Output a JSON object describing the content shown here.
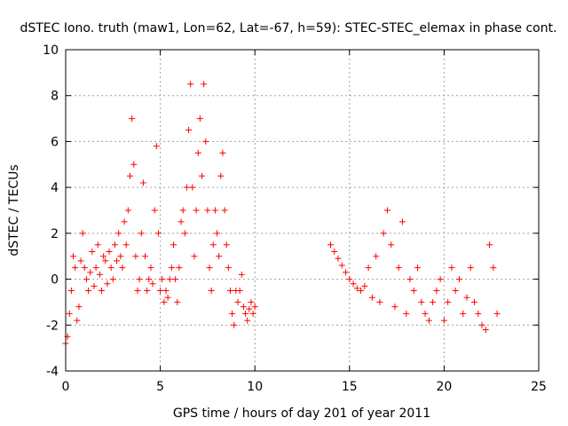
{
  "chart_data": {
    "type": "scatter",
    "title": "dSTEC Iono. truth (maw1, Lon=62, Lat=-67, h=59): STEC-STEC_elemax in phase cont.",
    "xlabel": "GPS time / hours of day 201 of year 2011",
    "ylabel": "dSTEC  / TECUs",
    "xlim": [
      0,
      25
    ],
    "ylim": [
      -4,
      10
    ],
    "xticks": [
      0,
      5,
      10,
      15,
      20,
      25
    ],
    "yticks": [
      -4,
      -2,
      0,
      2,
      4,
      6,
      8,
      10
    ],
    "grid": true,
    "legend": "none",
    "marker": "+",
    "color": "#ff0000",
    "series": [
      {
        "x": [
          0.0,
          0.1,
          0.2,
          0.3,
          0.4,
          0.5,
          0.6,
          0.7,
          0.8,
          0.9,
          1.0,
          1.1,
          1.2,
          1.3,
          1.4,
          1.5,
          1.6,
          1.7,
          1.8,
          1.9,
          2.0,
          2.1,
          2.2,
          2.3,
          2.4,
          2.5,
          2.6,
          2.7,
          2.8,
          2.9,
          3.0,
          3.1,
          3.2,
          3.3,
          3.4,
          3.5,
          3.6,
          3.7,
          3.8,
          3.9,
          4.0,
          4.1,
          4.2,
          4.3,
          4.4,
          4.5,
          4.6,
          4.7,
          4.8,
          4.9,
          5.0,
          5.1,
          5.2,
          5.3,
          5.4,
          5.5,
          5.6,
          5.7,
          5.8,
          5.9,
          6.0,
          6.1,
          6.2,
          6.3,
          6.4,
          6.5,
          6.6,
          6.7,
          6.8,
          6.9,
          7.0,
          7.1,
          7.2,
          7.3,
          7.4,
          7.5,
          7.6,
          7.7,
          7.8,
          7.9,
          8.0,
          8.1,
          8.2,
          8.3,
          8.4,
          8.5,
          8.6,
          8.7,
          8.8,
          8.9,
          9.0,
          9.1,
          9.2,
          9.3,
          9.4,
          9.5,
          9.6,
          9.7,
          9.8,
          9.9,
          10.0
        ],
        "y": [
          -2.8,
          -2.5,
          -1.5,
          -0.5,
          1.0,
          0.5,
          -1.8,
          -1.2,
          0.8,
          2.0,
          0.5,
          0.0,
          -0.5,
          0.3,
          1.2,
          -0.3,
          0.5,
          1.5,
          0.2,
          -0.5,
          1.0,
          0.8,
          -0.2,
          1.2,
          0.5,
          0.0,
          1.5,
          0.8,
          2.0,
          1.0,
          0.5,
          2.5,
          1.5,
          3.0,
          4.5,
          7.0,
          5.0,
          1.0,
          -0.5,
          0.0,
          2.0,
          4.2,
          1.0,
          -0.5,
          0.0,
          0.5,
          -0.2,
          3.0,
          5.8,
          2.0,
          -0.5,
          0.0,
          -1.0,
          -0.5,
          -0.8,
          0.0,
          0.5,
          1.5,
          0.0,
          -1.0,
          0.5,
          2.5,
          3.0,
          2.0,
          4.0,
          6.5,
          8.5,
          4.0,
          1.0,
          3.0,
          5.5,
          7.0,
          4.5,
          8.5,
          6.0,
          3.0,
          0.5,
          -0.5,
          1.5,
          3.0,
          2.0,
          1.0,
          4.5,
          5.5,
          3.0,
          1.5,
          0.5,
          -0.5,
          -1.5,
          -2.0,
          -0.5,
          -1.0,
          -0.5,
          0.2,
          -1.2,
          -1.5,
          -1.8,
          -1.3,
          -1.0,
          -1.5,
          -1.2
        ]
      },
      {
        "x": [
          14.0,
          14.2,
          14.4,
          14.6,
          14.8,
          15.0,
          15.2,
          15.4,
          15.6,
          15.8,
          16.0,
          16.2,
          16.4,
          16.6,
          16.8,
          17.0,
          17.2,
          17.4,
          17.6,
          17.8,
          18.0,
          18.2,
          18.4,
          18.6,
          18.8,
          19.0,
          19.2,
          19.4,
          19.6,
          19.8,
          20.0,
          20.2,
          20.4,
          20.6,
          20.8,
          21.0,
          21.2,
          21.4,
          21.6,
          21.8,
          22.0,
          22.2,
          22.4,
          22.6,
          22.8
        ],
        "y": [
          1.5,
          1.2,
          0.9,
          0.6,
          0.3,
          0.0,
          -0.2,
          -0.4,
          -0.5,
          -0.3,
          0.5,
          -0.8,
          1.0,
          -1.0,
          2.0,
          3.0,
          1.5,
          -1.2,
          0.5,
          2.5,
          -1.5,
          0.0,
          -0.5,
          0.5,
          -1.0,
          -1.5,
          -1.8,
          -1.0,
          -0.5,
          0.0,
          -1.8,
          -1.0,
          0.5,
          -0.5,
          0.0,
          -1.5,
          -0.8,
          0.5,
          -1.0,
          -1.5,
          -2.0,
          -2.2,
          1.5,
          0.5,
          -1.5
        ]
      }
    ]
  }
}
